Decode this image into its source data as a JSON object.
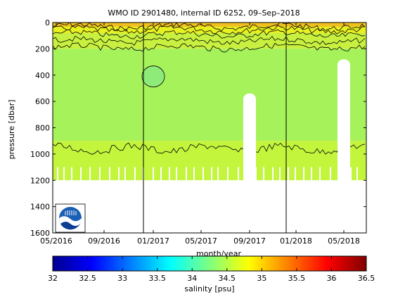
{
  "chart_data": {
    "type": "heatmap",
    "title": "WMO ID 2901480, internal ID 6252, 09–Sep–2018",
    "xlabel": "month/year",
    "ylabel": "pressure [dbar]",
    "x_ticks": [
      "05/2016",
      "09/2016",
      "01/2017",
      "05/2017",
      "09/2017",
      "01/2018",
      "05/2018"
    ],
    "y_ticks": [
      0,
      200,
      400,
      600,
      800,
      1000,
      1200,
      1400,
      1600
    ],
    "ylim": [
      1600,
      0
    ],
    "y_reversed": true,
    "colorbar": {
      "label": "salinity [psu]",
      "ticks": [
        "32",
        "32.5",
        "33",
        "33.5",
        "34",
        "34.5",
        "35",
        "35.5",
        "36",
        "36.5"
      ],
      "range": [
        32,
        36.5
      ],
      "colormap": "jet"
    },
    "salinity_layers": [
      {
        "p_top": 0,
        "p_bottom": 80,
        "salinity": 34.9,
        "color": "#e8f020"
      },
      {
        "p_top": 80,
        "p_bottom": 200,
        "salinity": 34.75,
        "color": "#c8f040"
      },
      {
        "p_top": 200,
        "p_bottom": 900,
        "salinity": 34.6,
        "color": "#a6f25a"
      },
      {
        "p_top": 900,
        "p_bottom": 1200,
        "salinity": 34.5,
        "color": "#c3f53d"
      }
    ],
    "low_salinity_patches": [
      {
        "time": "01/2017",
        "p_top": 330,
        "p_bottom": 490,
        "salinity": 34.35,
        "color": "#8eeb7a"
      }
    ],
    "year_boundaries": [
      "01/2017",
      "01/2018"
    ],
    "data_gaps": [
      {
        "time": "09/2017",
        "p_top": 540
      },
      {
        "time": "05/2018",
        "p_top": 280
      }
    ],
    "logo": "noaa-logo"
  }
}
